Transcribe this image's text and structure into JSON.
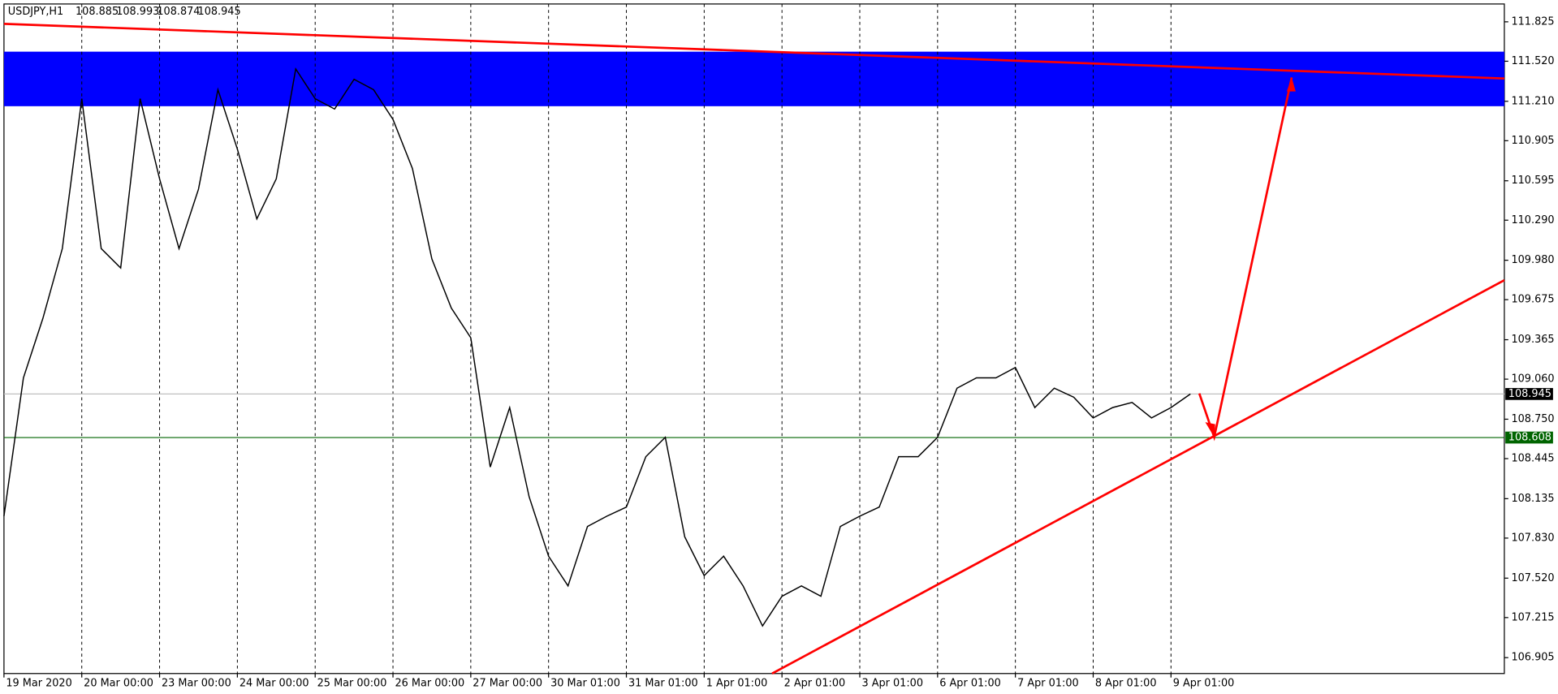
{
  "chart_data": {
    "type": "line",
    "header": {
      "symbol": "USDJPY,H1",
      "open": 108.885,
      "high": 108.993,
      "low": 108.874,
      "close": 108.945
    },
    "categories": [
      "19 Mar 2020",
      null,
      null,
      null,
      "20 Mar 00:00",
      null,
      null,
      null,
      "23 Mar 00:00",
      null,
      null,
      null,
      "24 Mar 00:00",
      null,
      null,
      null,
      "25 Mar 00:00",
      null,
      null,
      null,
      "26 Mar 00:00",
      null,
      null,
      null,
      "27 Mar 00:00",
      null,
      null,
      null,
      "30 Mar 01:00",
      null,
      null,
      null,
      "31 Mar 01:00",
      null,
      null,
      null,
      "1 Apr 01:00",
      null,
      null,
      null,
      "2 Apr 01:00",
      null,
      null,
      null,
      "3 Apr 01:00",
      null,
      null,
      null,
      "6 Apr 01:00",
      null,
      null,
      null,
      "7 Apr 01:00",
      null,
      null,
      null,
      "8 Apr 01:00",
      null,
      null,
      null,
      "9 Apr 01:00",
      null
    ],
    "values": [
      108.0,
      109.07,
      109.53,
      110.07,
      111.23,
      110.07,
      109.92,
      111.23,
      110.61,
      110.07,
      110.53,
      111.3,
      110.84,
      110.3,
      110.61,
      111.46,
      111.23,
      111.15,
      111.38,
      111.3,
      111.07,
      110.69,
      109.99,
      109.61,
      109.38,
      108.38,
      108.84,
      108.15,
      107.69,
      107.46,
      107.92,
      108.0,
      108.07,
      108.46,
      108.61,
      107.84,
      107.54,
      107.69,
      107.46,
      107.15,
      107.38,
      107.46,
      107.38,
      107.92,
      108.0,
      108.07,
      108.46,
      108.46,
      108.61,
      108.99,
      109.07,
      109.07,
      109.15,
      108.84,
      108.99,
      108.92,
      108.76,
      108.84,
      108.88,
      108.76,
      108.84,
      108.945
    ],
    "color": "#000000",
    "ylim": [
      106.782,
      111.963
    ],
    "yticks": [
      111.825,
      {
        "value": 111.52,
        "label": "111.520"
      },
      {
        "value": 111.21,
        "label": "111.210"
      },
      110.905,
      110.595,
      {
        "value": 110.29,
        "label": "110.290"
      },
      {
        "value": 109.98,
        "label": "109.980"
      },
      109.675,
      109.365,
      {
        "value": 109.06,
        "label": "109.060"
      },
      {
        "value": 108.75,
        "label": "108.750"
      },
      108.445,
      108.135,
      {
        "value": 107.83,
        "label": "107.830"
      },
      {
        "value": 107.52,
        "label": "107.520"
      },
      107.215,
      106.905
    ],
    "zone": {
      "low": 111.172,
      "high": 111.594,
      "color": "#0000ff"
    },
    "hline": {
      "value": 108.608,
      "color": "#006400"
    },
    "grid": true
  }
}
